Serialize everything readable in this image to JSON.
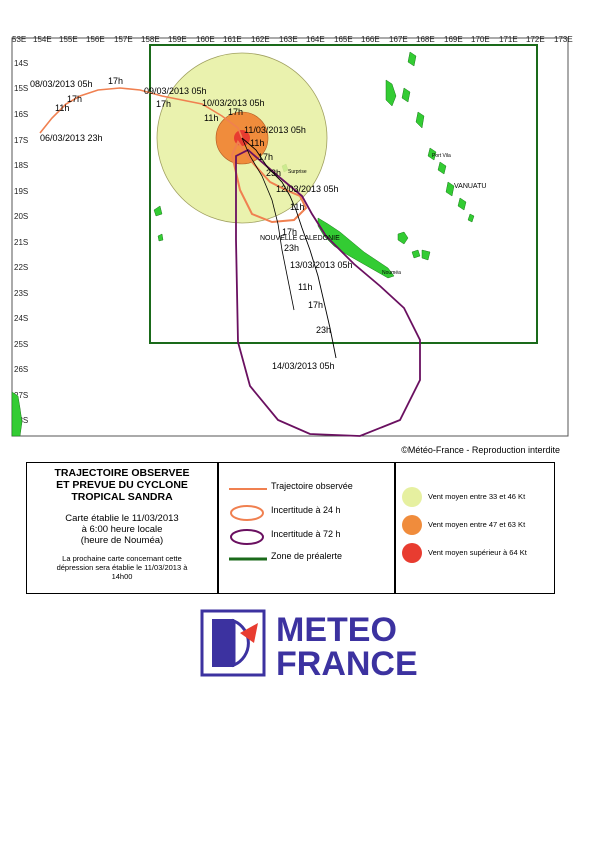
{
  "map": {
    "lon_labels": [
      "53E",
      "154E",
      "155E",
      "156E",
      "157E",
      "158E",
      "159E",
      "160E",
      "161E",
      "162E",
      "163E",
      "164E",
      "165E",
      "166E",
      "167E",
      "168E",
      "169E",
      "170E",
      "171E",
      "172E",
      "173E"
    ],
    "lat_labels": [
      "14S",
      "15S",
      "16S",
      "17S",
      "18S",
      "19S",
      "20S",
      "21S",
      "22S",
      "23S",
      "24S",
      "25S",
      "26S",
      "27S",
      "28S"
    ],
    "track_labels": {
      "d0803": "08/03/2013 05h",
      "t17a": "17h",
      "t11a": "11h",
      "d0603": "06/03/2013 23h",
      "d0903": "09/03/2013 05h",
      "t17b": "17h",
      "d1003": "10/03/2013 05h",
      "t11b": "11h",
      "t17c": "17h",
      "d1103": "11/03/2013 05h",
      "t11c": "11h",
      "t17d": "17h",
      "t23a": "23h",
      "d1203": "12/03/2013 05h",
      "t11d": "11h",
      "t17e": "17h",
      "t23b": "23h",
      "d1303": "13/03/2013 05h",
      "t11e": "11h",
      "t17f": "17h",
      "t23c": "23h",
      "d1403": "14/03/2013 05h"
    },
    "place_labels": {
      "nc": "NOUVELLE CALEDONIE",
      "vanuatu": "VANUATU",
      "nouma": "Nouméa",
      "portvila": "Port Vila",
      "surprise": "Surprise"
    },
    "colors": {
      "observed_track": "#f08050",
      "uncertainty_24h": "#f08050",
      "uncertainty_72h": "#6a1060",
      "alert_zone": "#1a6a1a",
      "wind_33_46": "#e6f0a0",
      "wind_47_63": "#f08c3c",
      "wind_64": "#e83c30",
      "land": "#33cc33"
    }
  },
  "copyright": "©Météo-France - Reproduction interdite",
  "title": {
    "line1": "TRAJECTOIRE OBSERVEE",
    "line2": "ET PREVUE DU CYCLONE",
    "line3": "TROPICAL SANDRA",
    "issued1": "Carte établie le 11/03/2013",
    "issued2": "à 6:00 heure locale",
    "issued3": "(heure de Nouméa)",
    "next1": "La prochaine carte concernant cette",
    "next2": "dépression sera établie le 11/03/2013 à",
    "next3": "14h00"
  },
  "legend": {
    "observed": "Trajectoire observée",
    "u24": "Incertitude à 24 h",
    "u72": "Incertitude à 72 h",
    "alert": "Zone de préalerte"
  },
  "wind": {
    "w1": "Vent moyen entre 33 et 46 Kt",
    "w2": "Vent moyen entre 47 et 63 Kt",
    "w3": "Vent moyen supérieur à 64 Kt"
  },
  "logo": {
    "line1": "METEO",
    "line2": "FRANCE",
    "color": "#3c32a0"
  }
}
